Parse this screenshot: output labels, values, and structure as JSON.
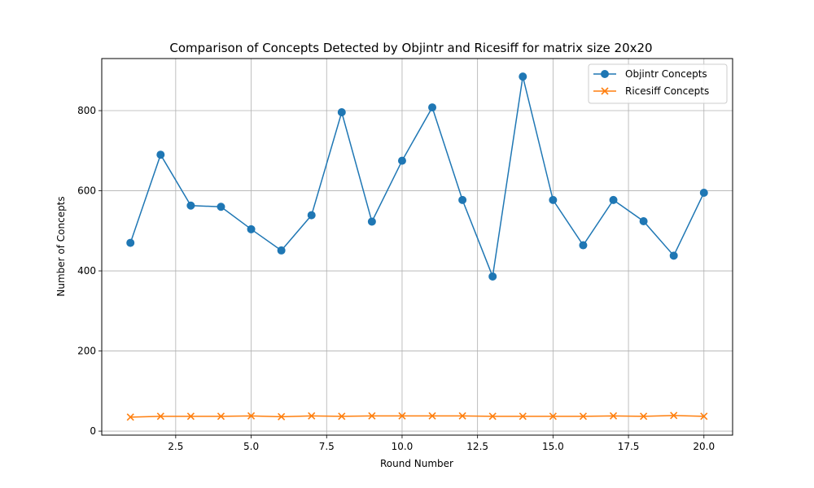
{
  "chart_data": {
    "type": "line",
    "title": "Comparison of Concepts Detected by Objintr and Ricesiff for matrix size 20x20",
    "xlabel": "Round Number",
    "ylabel": "Number of Concepts",
    "xlim": [
      0.05,
      20.95
    ],
    "ylim": [
      -10,
      930
    ],
    "xticks": [
      2.5,
      5.0,
      7.5,
      10.0,
      12.5,
      15.0,
      17.5,
      20.0
    ],
    "xtick_labels": [
      "2.5",
      "5.0",
      "7.5",
      "10.0",
      "12.5",
      "15.0",
      "17.5",
      "20.0"
    ],
    "yticks": [
      0,
      200,
      400,
      600,
      800
    ],
    "ytick_labels": [
      "0",
      "200",
      "400",
      "600",
      "800"
    ],
    "grid": true,
    "legend_position": "top-right",
    "x": [
      1,
      2,
      3,
      4,
      5,
      6,
      7,
      8,
      9,
      10,
      11,
      12,
      13,
      14,
      15,
      16,
      17,
      18,
      19,
      20
    ],
    "series": [
      {
        "name": "Objintr Concepts",
        "color": "#1f77b4",
        "marker": "circle",
        "values": [
          470,
          690,
          563,
          560,
          504,
          451,
          539,
          796,
          523,
          675,
          808,
          577,
          386,
          885,
          577,
          464,
          577,
          524,
          438,
          595
        ]
      },
      {
        "name": "Ricesiff Concepts",
        "color": "#ff7f0e",
        "marker": "x",
        "values": [
          35,
          37,
          37,
          37,
          38,
          36,
          38,
          37,
          38,
          38,
          38,
          38,
          37,
          37,
          37,
          37,
          38,
          37,
          39,
          37
        ]
      }
    ]
  }
}
